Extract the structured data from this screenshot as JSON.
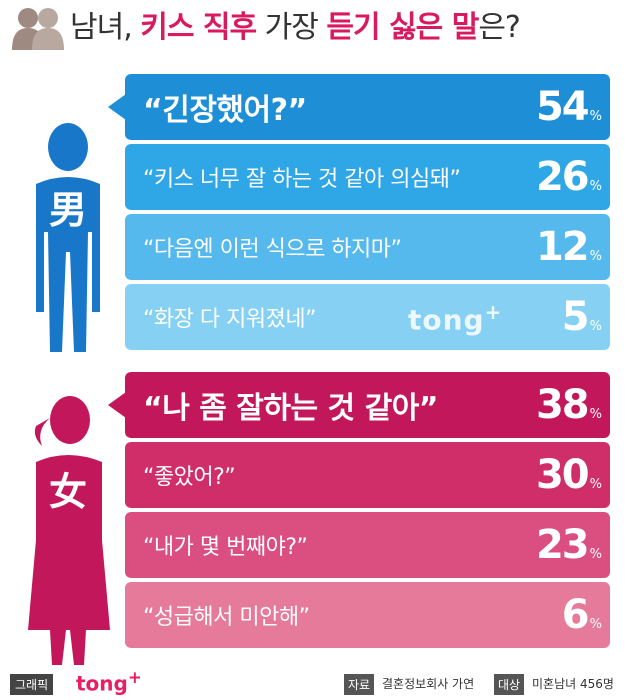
{
  "header": {
    "title_parts": [
      "남녀, ",
      "키스 직후",
      " 가장 ",
      "듣기 싫은 말",
      "은?"
    ]
  },
  "colors": {
    "male_bars": [
      "#1e8fd6",
      "#2fa6e6",
      "#55b9ee",
      "#86d0f4"
    ],
    "female_bars": [
      "#c2185b",
      "#cf2e68",
      "#db4f80",
      "#e57a9b"
    ],
    "male_figure": "#1877c9",
    "female_figure": "#c2185b",
    "highlight": "#d81b60"
  },
  "chart_data": [
    {
      "type": "bar",
      "group_label": "男",
      "categories": [
        "“긴장했어?”",
        "“키스 너무 잘 하는 것 같아 의심돼”",
        "“다음엔 이런 식으로 하지마”",
        "“화장 다 지워졌네”"
      ],
      "values": [
        54,
        26,
        12,
        5
      ],
      "unit": "%"
    },
    {
      "type": "bar",
      "group_label": "女",
      "categories": [
        "“나 좀 잘하는 것 같아”",
        "“좋았어?”",
        "“내가 몇 번째야?”",
        "“성급해서 미안해”"
      ],
      "values": [
        38,
        30,
        23,
        6
      ],
      "unit": "%"
    }
  ],
  "watermark": {
    "text": "tong",
    "sup": "+"
  },
  "footer": {
    "credit_label": "그래픽",
    "credit_logo": "tong",
    "credit_logo_sup": "+",
    "source_label": "자료",
    "source_value": "결혼정보회사 가연",
    "target_label": "대상",
    "target_value": "미혼남녀 456명"
  }
}
